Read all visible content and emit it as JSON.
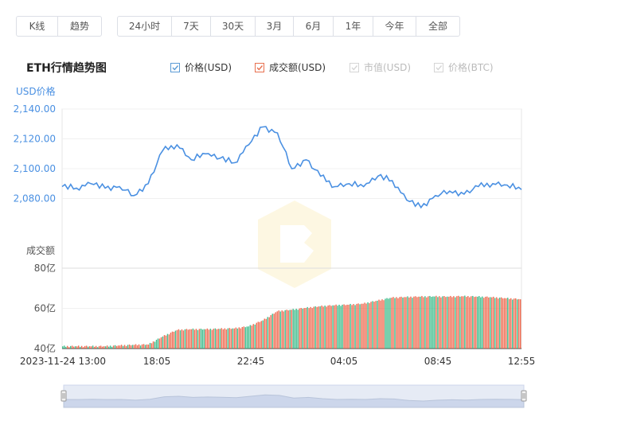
{
  "view_tabs": [
    {
      "label": "K线",
      "active": false
    },
    {
      "label": "趋势",
      "active": true
    }
  ],
  "range_tabs": [
    {
      "label": "24小时",
      "active": true
    },
    {
      "label": "7天",
      "active": false
    },
    {
      "label": "30天",
      "active": false
    },
    {
      "label": "3月",
      "active": false
    },
    {
      "label": "6月",
      "active": false
    },
    {
      "label": "1年",
      "active": false
    },
    {
      "label": "今年",
      "active": false
    },
    {
      "label": "全部",
      "active": false
    }
  ],
  "title": "ETH行情趋势图",
  "legend": [
    {
      "label": "价格(USD)",
      "checked": true,
      "color": "#5b9bd5",
      "text_color": "#333333"
    },
    {
      "label": "成交额(USD)",
      "checked": true,
      "color": "#e8704f",
      "text_color": "#333333"
    },
    {
      "label": "市值(USD)",
      "checked": false,
      "color": "#cccccc",
      "text_color": "#bbbbbb"
    },
    {
      "label": "价格(BTC)",
      "checked": false,
      "color": "#cccccc",
      "text_color": "#bbbbbb"
    }
  ],
  "colors": {
    "price_line": "#4a90e2",
    "vol_up": "#3dbb8a",
    "vol_down": "#ee6a50",
    "accent": "#1f86e6",
    "navigator_fill": "#ccd6eb"
  },
  "chart_data": {
    "type": "line",
    "price": {
      "ylabel": "USD价格",
      "ylim": [
        2060,
        2140
      ],
      "yticks": [
        "2,140.00",
        "2,120.00",
        "2,100.00",
        "2,080.00"
      ],
      "x": [
        "13:00",
        "13:45",
        "14:30",
        "15:15",
        "16:00",
        "16:45",
        "17:30",
        "18:15",
        "19:00",
        "19:45",
        "20:30",
        "21:15",
        "22:00",
        "22:45",
        "23:30",
        "00:15",
        "01:00",
        "01:45",
        "02:30",
        "03:15",
        "04:00",
        "04:45",
        "05:30",
        "06:15",
        "07:00",
        "07:45",
        "08:30",
        "09:15",
        "10:00",
        "10:45",
        "11:30",
        "12:15",
        "12:55"
      ],
      "values": [
        2088,
        2087,
        2090,
        2087,
        2088,
        2082,
        2090,
        2112,
        2116,
        2106,
        2110,
        2107,
        2104,
        2116,
        2128,
        2124,
        2100,
        2106,
        2095,
        2088,
        2090,
        2088,
        2095,
        2092,
        2079,
        2074,
        2082,
        2085,
        2083,
        2088,
        2090,
        2089,
        2086
      ]
    },
    "volume": {
      "ylabel": "成交额",
      "ylim": [
        40,
        80
      ],
      "ytick_labels": [
        "80亿",
        "60亿",
        "40亿"
      ],
      "values": [
        41.1,
        41.1,
        41.1,
        41.1,
        41.5,
        41.8,
        42.0,
        46.0,
        49.2,
        49.6,
        49.6,
        49.8,
        50.0,
        51.0,
        54.0,
        58.5,
        59.3,
        60.2,
        61.0,
        61.5,
        61.8,
        62.3,
        63.8,
        65.3,
        65.6,
        65.8,
        65.9,
        65.8,
        66.0,
        65.8,
        65.5,
        65.0,
        64.5
      ]
    },
    "x_tick_labels": [
      "2023-11-24 13:00",
      "18:05",
      "22:45",
      "04:05",
      "08:45",
      "12:55"
    ]
  }
}
